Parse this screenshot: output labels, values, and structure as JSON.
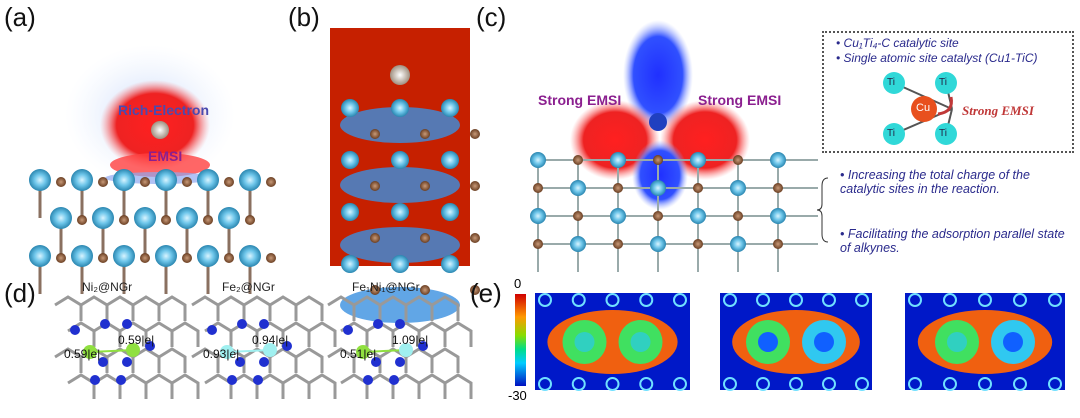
{
  "panels": {
    "a": {
      "label": "(a)",
      "annotations": [
        "Rich-Electron",
        "EMSI"
      ]
    },
    "b": {
      "label": "(b)"
    },
    "c": {
      "label": "(c)",
      "annotations": [
        "Strong EMSI",
        "Strong EMSI"
      ]
    },
    "d": {
      "label": "(d)",
      "structures": [
        {
          "title": "Ni₂@NGr",
          "charges": [
            "0.59|e|",
            "0.59|e|"
          ]
        },
        {
          "title": "Fe₂@NGr",
          "charges": [
            "0.93|e|",
            "0.94|e|"
          ]
        },
        {
          "title": "Fe₁Ni₁@NGr",
          "charges": [
            "0.51|e|",
            "1.09|e|"
          ]
        }
      ]
    },
    "e": {
      "label": "(e)",
      "colorbar": {
        "max": "0",
        "min": "-30"
      }
    }
  },
  "info_box": {
    "bullets": [
      "Cu₁Ti₄-C catalytic site",
      "Single atomic site catalyst (Cu1-TiC)"
    ],
    "center_atom": "Cu",
    "ligand_atom": "Ti",
    "arrow_label": "Strong EMSI"
  },
  "effects": [
    "Increasing the total charge of the catalytic sites in the reaction.",
    "Facilitating the adsorption parallel state of alkynes."
  ],
  "colors": {
    "ti": "#6ec6ea",
    "c": "#8a5a3a",
    "cu": "#e8501e",
    "emsi": "#8b1f8f",
    "text_blue": "#2a2a8c"
  }
}
